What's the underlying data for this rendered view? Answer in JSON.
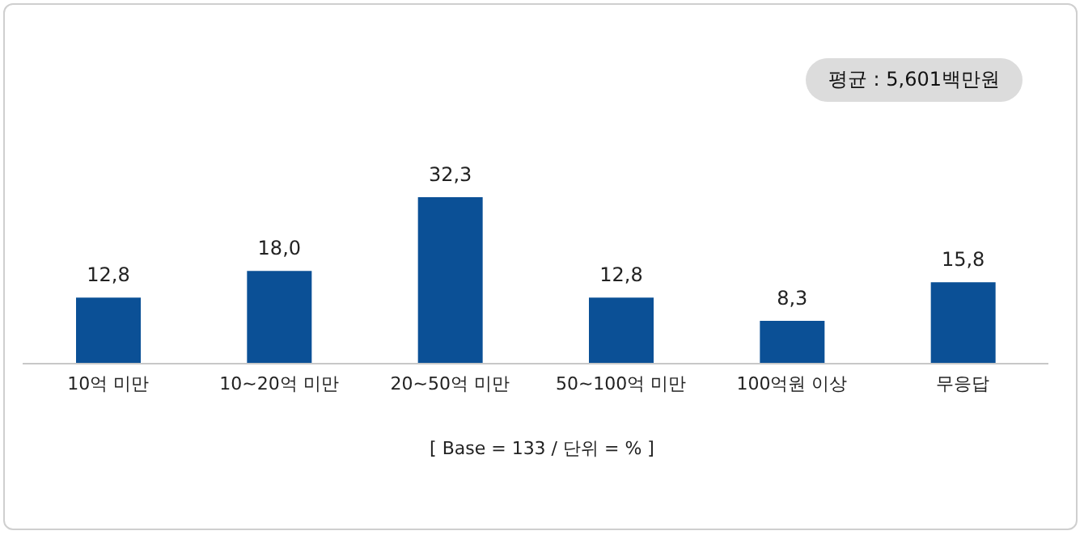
{
  "chart_data": {
    "type": "bar",
    "categories": [
      "10억 미만",
      "10~20억 미만",
      "20~50억 미만",
      "50~100억 미만",
      "100억원 이상",
      "무응답"
    ],
    "values": [
      12.8,
      18.0,
      32.3,
      12.8,
      8.3,
      15.8
    ],
    "value_labels": [
      "12,8",
      "18,0",
      "32,3",
      "12,8",
      "8,3",
      "15,8"
    ],
    "color": "#0b5096",
    "annotations": [
      "평균 : 5,601백만원",
      "[ Base = 133 / 단위 = % ]"
    ],
    "grid": false,
    "legend": false
  }
}
